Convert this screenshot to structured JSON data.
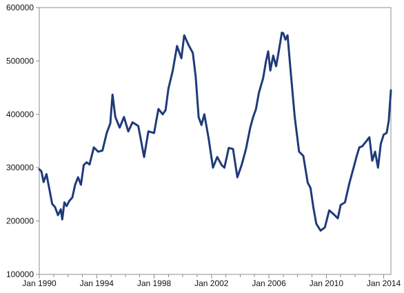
{
  "chart_data": {
    "type": "line",
    "title": "",
    "xlabel": "",
    "ylabel": "",
    "grid": false,
    "legend": "none",
    "ylim": [
      100000,
      600000
    ],
    "xlim": [
      1990.0,
      2014.5
    ],
    "y_ticks": [
      100000,
      200000,
      300000,
      400000,
      500000,
      600000
    ],
    "y_tick_labels": [
      "100000",
      "200000",
      "300000",
      "400000",
      "500000",
      "600000"
    ],
    "x_ticks": [
      1990,
      1994,
      1998,
      2002,
      2006,
      2010,
      2014
    ],
    "x_tick_labels": [
      "Jan 1990",
      "Jan 1994",
      "Jan 1998",
      "Jan 2002",
      "Jan 2006",
      "Jan 2010",
      "Jan 2014"
    ],
    "series": [
      {
        "color": "#1f3a7a",
        "x": [
          1990.0,
          1990.15,
          1990.3,
          1990.5,
          1990.7,
          1990.9,
          1991.1,
          1991.3,
          1991.5,
          1991.6,
          1991.75,
          1991.9,
          1992.1,
          1992.3,
          1992.5,
          1992.7,
          1992.9,
          1993.1,
          1993.3,
          1993.5,
          1993.8,
          1994.1,
          1994.4,
          1994.7,
          1994.95,
          1995.1,
          1995.3,
          1995.6,
          1995.9,
          1996.2,
          1996.5,
          1996.9,
          1997.3,
          1997.6,
          1998.0,
          1998.3,
          1998.6,
          1998.8,
          1999.0,
          1999.3,
          1999.6,
          1999.9,
          2000.1,
          2000.4,
          2000.7,
          2000.9,
          2001.1,
          2001.3,
          2001.5,
          2001.8,
          2002.1,
          2002.4,
          2002.7,
          2002.9,
          2003.2,
          2003.5,
          2003.8,
          2004.1,
          2004.4,
          2004.7,
          2004.9,
          2005.1,
          2005.3,
          2005.6,
          2005.8,
          2005.95,
          2006.1,
          2006.3,
          2006.5,
          2006.7,
          2006.9,
          2007.0,
          2007.15,
          2007.3,
          2007.5,
          2007.8,
          2008.1,
          2008.4,
          2008.7,
          2008.9,
          2009.1,
          2009.3,
          2009.6,
          2009.9,
          2010.2,
          2010.5,
          2010.8,
          2011.0,
          2011.3,
          2011.6,
          2011.9,
          2012.1,
          2012.3,
          2012.5,
          2012.8,
          2013.0,
          2013.2,
          2013.4,
          2013.6,
          2013.8,
          2014.0,
          2014.2,
          2014.35,
          2014.5
        ],
        "values": [
          297000,
          293000,
          273000,
          288000,
          260000,
          232000,
          226000,
          211000,
          222000,
          203000,
          235000,
          228000,
          238000,
          244000,
          268000,
          282000,
          268000,
          305000,
          310000,
          306000,
          338000,
          330000,
          332000,
          365000,
          383000,
          437000,
          395000,
          375000,
          395000,
          368000,
          385000,
          378000,
          320000,
          368000,
          365000,
          410000,
          400000,
          408000,
          448000,
          482000,
          528000,
          505000,
          548000,
          530000,
          515000,
          470000,
          395000,
          380000,
          400000,
          355000,
          300000,
          320000,
          305000,
          300000,
          337000,
          335000,
          282000,
          305000,
          335000,
          375000,
          395000,
          410000,
          440000,
          468000,
          500000,
          518000,
          482000,
          510000,
          490000,
          520000,
          553000,
          552000,
          540000,
          548000,
          485000,
          395000,
          330000,
          322000,
          272000,
          262000,
          225000,
          195000,
          182000,
          188000,
          220000,
          213000,
          205000,
          230000,
          235000,
          270000,
          300000,
          320000,
          338000,
          340000,
          350000,
          357000,
          313000,
          330000,
          300000,
          345000,
          362000,
          365000,
          388000,
          445000
        ]
      }
    ]
  }
}
